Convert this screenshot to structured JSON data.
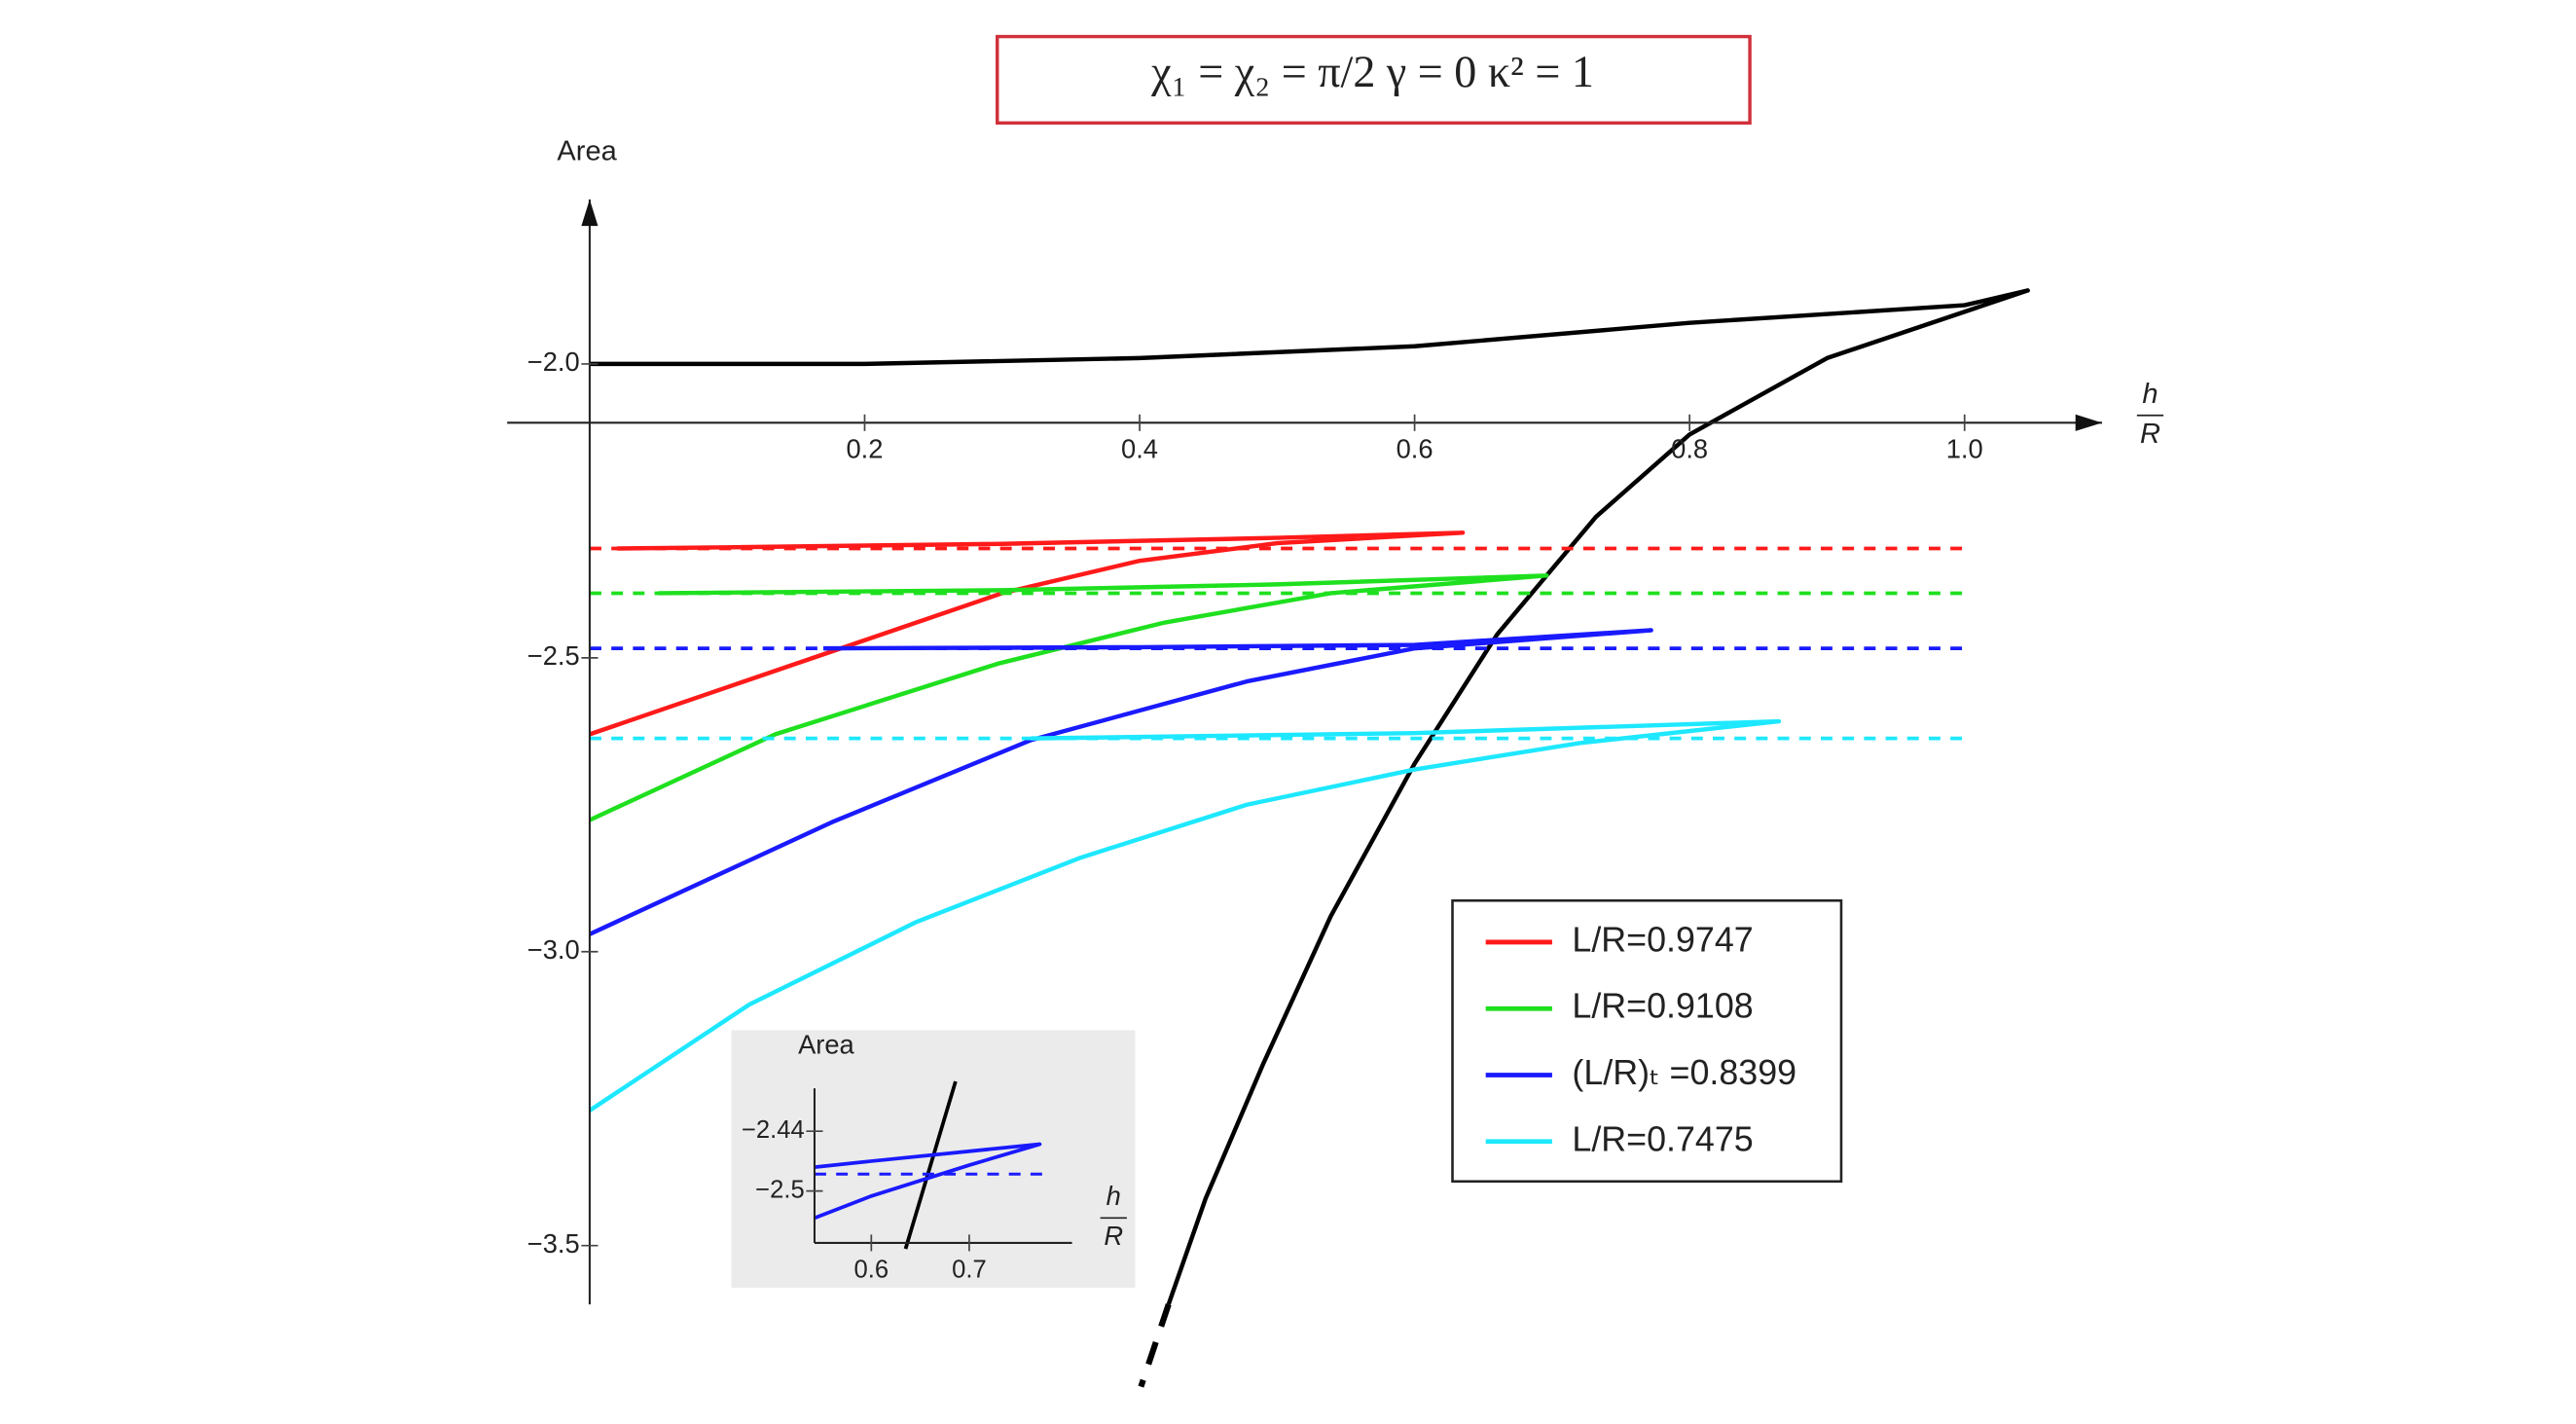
{
  "chart_data": [
    {
      "type": "line",
      "title": "χ₁ = χ₂ = π/2    γ = 0    κ² = 1",
      "y_label": "Area",
      "x_label": {
        "numerator": "h",
        "denominator": "R"
      },
      "xlim": [
        -0.06,
        1.1
      ],
      "ylim": [
        -3.6,
        -1.72
      ],
      "x_axis_crossing": -2.1,
      "xticks": [
        0.2,
        0.4,
        0.6,
        0.8,
        {
          "value": 1.0,
          "label": "1.0"
        }
      ],
      "yticks": [
        {
          "value": -2.0,
          "label": "−2.0"
        },
        {
          "value": -2.5,
          "label": "−2.5"
        },
        {
          "value": -3.0,
          "label": "−3.0"
        },
        {
          "value": -3.5,
          "label": "−3.5"
        }
      ],
      "legend": "lower right",
      "series": [
        {
          "color": "#000000",
          "x": [
            0,
            0.2,
            0.4,
            0.6,
            0.8,
            1.0,
            1.046,
            0.9,
            0.8,
            0.732,
            0.66,
            0.6,
            0.539,
            0.49,
            0.448,
            0.421
          ],
          "values": [
            -2.0,
            -2.0,
            -1.99,
            -1.97,
            -1.93,
            -1.9,
            -1.875,
            -1.99,
            -2.12,
            -2.26,
            -2.46,
            -2.68,
            -2.94,
            -3.19,
            -3.42,
            -3.6
          ]
        },
        {
          "color": "#000000",
          "dash": true,
          "x": [
            0.421,
            0.401
          ],
          "values": [
            -3.6,
            -3.74
          ]
        },
        {
          "name": "L/R=0.9747",
          "color": "#ff1a1a",
          "x": [
            0,
            0.1,
            0.2,
            0.3,
            0.4,
            0.5,
            0.635,
            0.5,
            0.3,
            0.1,
            0.02
          ],
          "values": [
            -2.63,
            -2.55,
            -2.47,
            -2.39,
            -2.335,
            -2.305,
            -2.287,
            -2.296,
            -2.306,
            -2.312,
            -2.314
          ]
        },
        {
          "name": "L/R=0.9108",
          "color": "#1fe01f",
          "x": [
            0,
            0.135,
            0.297,
            0.418,
            0.539,
            0.696,
            0.5,
            0.3,
            0.05
          ],
          "values": [
            -2.776,
            -2.63,
            -2.51,
            -2.44,
            -2.39,
            -2.36,
            -2.375,
            -2.385,
            -2.39
          ]
        },
        {
          "name": "(L/R)ₜ =0.8399",
          "color": "#1a1aff",
          "x": [
            0,
            0.176,
            0.321,
            0.478,
            0.6,
            0.772,
            0.6,
            0.4,
            0.17
          ],
          "values": [
            -2.97,
            -2.78,
            -2.64,
            -2.54,
            -2.484,
            -2.453,
            -2.478,
            -2.482,
            -2.484
          ]
        },
        {
          "name": "L/R=0.7475",
          "color": "#1ee8ff",
          "x": [
            0,
            0.116,
            0.237,
            0.357,
            0.478,
            0.6,
            0.72,
            0.865,
            0.6,
            0.321
          ],
          "values": [
            -3.27,
            -3.09,
            -2.95,
            -2.84,
            -2.75,
            -2.69,
            -2.645,
            -2.608,
            -2.628,
            -2.637
          ]
        },
        {
          "color": "#ff1a1a",
          "dash": true,
          "x": [
            0,
            1.0
          ],
          "values": [
            -2.314,
            -2.314
          ]
        },
        {
          "color": "#1fe01f",
          "dash": true,
          "x": [
            0,
            1.0
          ],
          "values": [
            -2.39,
            -2.39
          ]
        },
        {
          "color": "#1a1aff",
          "dash": true,
          "x": [
            0,
            1.0
          ],
          "values": [
            -2.484,
            -2.484
          ]
        },
        {
          "color": "#1ee8ff",
          "dash": true,
          "x": [
            0,
            1.0
          ],
          "values": [
            -2.637,
            -2.637
          ]
        }
      ]
    },
    {
      "type": "line",
      "y_label": "Area",
      "x_label": {
        "numerator": "h",
        "denominator": "R"
      },
      "xlim": [
        0.542,
        0.805
      ],
      "ylim": [
        -2.552,
        -2.397
      ],
      "xticks": [
        0.6,
        0.7
      ],
      "yticks": [
        {
          "value": -2.44,
          "label": "−2.44"
        },
        {
          "value": -2.5,
          "label": "−2.5"
        }
      ],
      "series": [
        {
          "color": "#000000",
          "x": [
            0.635,
            0.686
          ],
          "values": [
            -2.558,
            -2.39
          ]
        },
        {
          "color": "#1a1aff",
          "x": [
            0.542,
            0.6,
            0.7,
            0.772,
            0.6,
            0.542
          ],
          "values": [
            -2.527,
            -2.505,
            -2.474,
            -2.453,
            -2.47,
            -2.476
          ]
        },
        {
          "color": "#1a1aff",
          "dash": true,
          "x": [
            0.542,
            0.78
          ],
          "values": [
            -2.483,
            -2.483
          ]
        }
      ]
    }
  ]
}
